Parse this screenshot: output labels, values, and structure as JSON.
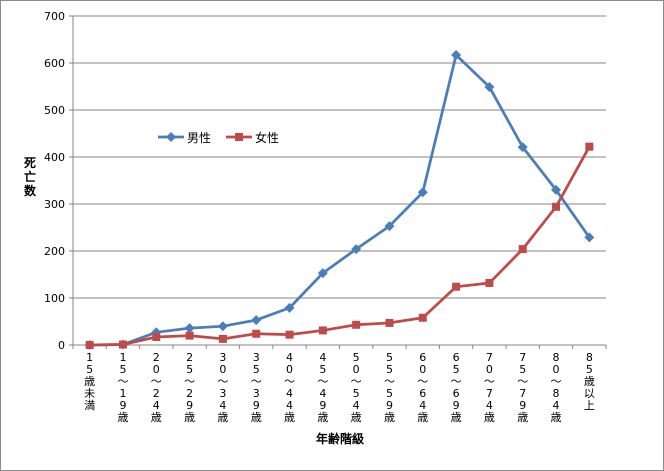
{
  "chart_data": {
    "type": "line",
    "title": "",
    "ylabel": "死亡数",
    "xlabel": "年齢階級",
    "ylim": [
      0,
      700
    ],
    "yticks": [
      0,
      100,
      200,
      300,
      400,
      500,
      600,
      700
    ],
    "grid": "horizontal",
    "legend_position": "left-middle",
    "categories": [
      "15歳未満",
      "15〜19歳",
      "20〜24歳",
      "25〜29歳",
      "30〜34歳",
      "35〜39歳",
      "40〜44歳",
      "45〜49歳",
      "50〜54歳",
      "55〜59歳",
      "60〜64歳",
      "65〜69歳",
      "70〜74歳",
      "75〜79歳",
      "80〜84歳",
      "85歳以上"
    ],
    "series": [
      {
        "name": "男性",
        "color": "#4a7ebb",
        "marker": "diamond",
        "values": [
          0,
          1,
          27,
          36,
          40,
          53,
          79,
          153,
          204,
          253,
          325,
          617,
          549,
          421,
          330,
          229
        ]
      },
      {
        "name": "女性",
        "color": "#be4b48",
        "marker": "square",
        "values": [
          0,
          1,
          17,
          20,
          13,
          24,
          22,
          31,
          43,
          47,
          58,
          124,
          132,
          204,
          294,
          422
        ]
      }
    ]
  }
}
